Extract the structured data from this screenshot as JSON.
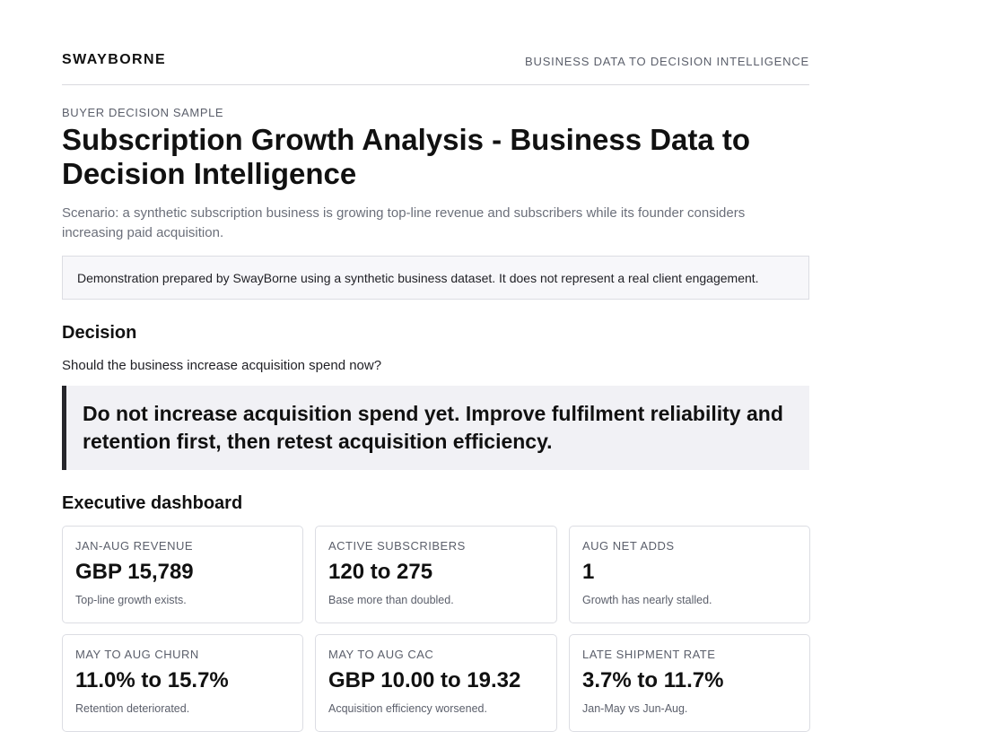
{
  "header": {
    "brand": "SWAYBORNE",
    "tagline": "BUSINESS DATA TO DECISION INTELLIGENCE"
  },
  "intro": {
    "eyebrow": "BUYER DECISION SAMPLE",
    "title": "Subscription Growth Analysis - Business Data to Decision Intelligence",
    "scenario": "Scenario: a synthetic subscription business is growing top-line revenue and subscribers while its founder considers increasing paid acquisition.",
    "notice": "Demonstration prepared by SwayBorne using a synthetic business dataset. It does not represent a real client engagement."
  },
  "decision": {
    "heading": "Decision",
    "question": "Should the business increase acquisition spend now?",
    "answer": "Do not increase acquisition spend yet. Improve fulfilment reliability and retention first, then retest acquisition efficiency."
  },
  "dashboard": {
    "heading": "Executive dashboard",
    "cards": [
      {
        "label": "JAN-AUG REVENUE",
        "value": "GBP 15,789",
        "note": "Top-line growth exists."
      },
      {
        "label": "ACTIVE SUBSCRIBERS",
        "value": "120 to 275",
        "note": "Base more than doubled."
      },
      {
        "label": "AUG NET ADDS",
        "value": "1",
        "note": "Growth has nearly stalled."
      },
      {
        "label": "MAY TO AUG CHURN",
        "value": "11.0% to 15.7%",
        "note": "Retention deteriorated."
      },
      {
        "label": "MAY TO AUG CAC",
        "value": "GBP 10.00 to 19.32",
        "note": "Acquisition efficiency worsened."
      },
      {
        "label": "LATE SHIPMENT RATE",
        "value": "3.7% to 11.7%",
        "note": "Jan-May vs Jun-Aug."
      }
    ]
  }
}
